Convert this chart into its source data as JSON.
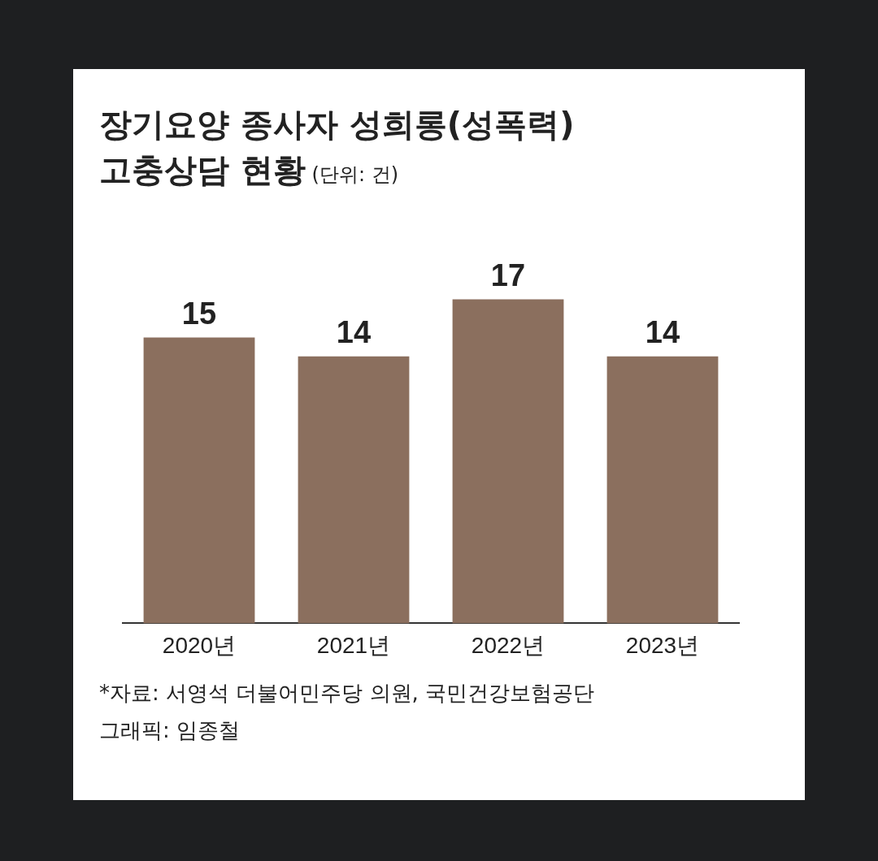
{
  "chart_data": {
    "type": "bar",
    "title": "장기요양 종사자 성희롱(성폭력)\n고충상담 현황",
    "subtitle": "(단위: 건)",
    "categories": [
      "2020년",
      "2021년",
      "2022년",
      "2023년"
    ],
    "values": [
      15,
      14,
      17,
      14
    ],
    "color": "#8b6f5e",
    "data_labels": true,
    "grid": false,
    "legend": false,
    "annotations": [
      "*자료: 서영석 더불어민주당 의원, 국민건강보험공단",
      "그래픽: 임종철"
    ]
  }
}
